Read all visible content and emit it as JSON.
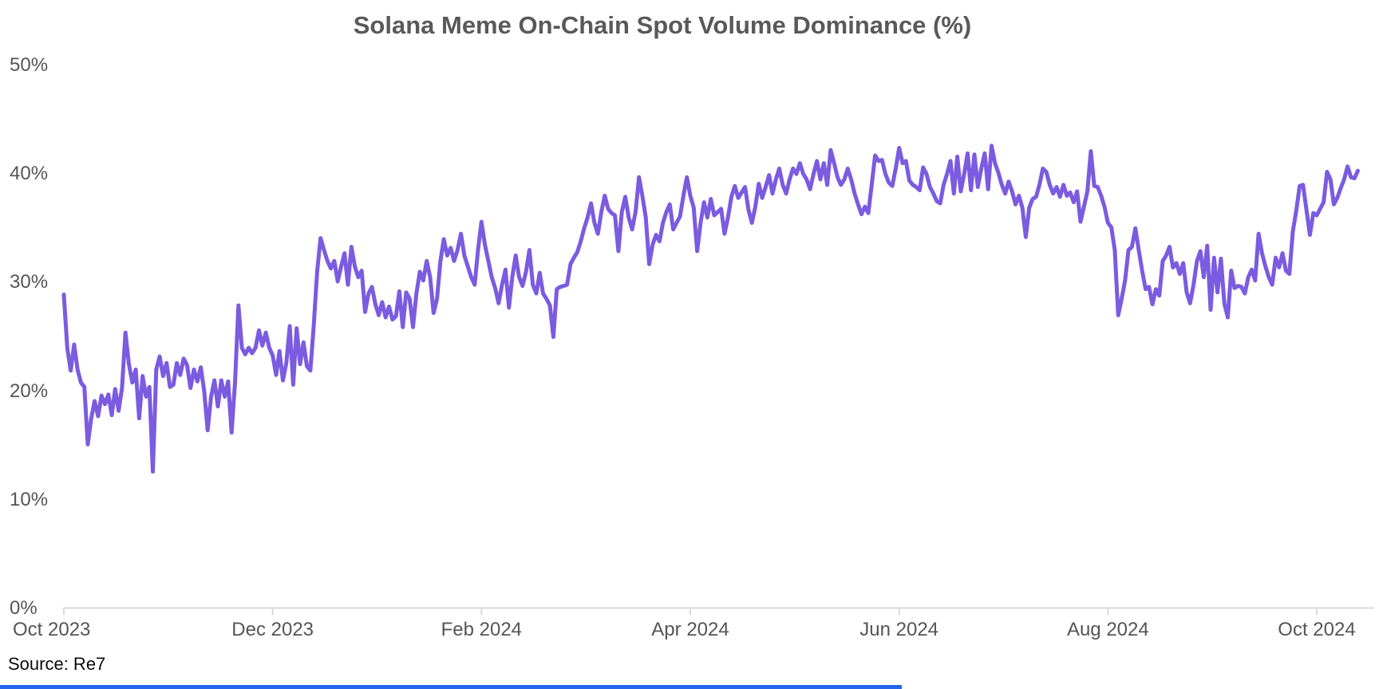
{
  "title": "Solana Meme On-Chain Spot Volume Dominance (%)",
  "source_note": "Source: Re7",
  "colors": {
    "background": "#ffffff",
    "line": "#7b5be0",
    "title_text": "#595959",
    "axis_label_text": "#555555",
    "axis_line": "#d9d9d9",
    "source_text": "#0b0b0b",
    "bottom_bar": "#2563eb"
  },
  "chart_data": {
    "type": "line",
    "title": "Solana Meme On-Chain Spot Volume Dominance (%)",
    "series_name": "Solana meme on-chain spot volume dominance",
    "unit": "%",
    "grid": false,
    "legend": false,
    "x_axis": {
      "start_date": "2023-10-01",
      "end_date": "2024-10-13",
      "tick_labels": [
        "Oct 2023",
        "Dec 2023",
        "Feb 2024",
        "Apr 2024",
        "Jun 2024",
        "Aug 2024",
        "Oct 2024"
      ],
      "tick_month_offsets": [
        0,
        2,
        4,
        6,
        8,
        10,
        12
      ]
    },
    "y_axis": {
      "min": 0,
      "max": 50,
      "tick_values": [
        0,
        10,
        20,
        30,
        40,
        50
      ],
      "tick_labels": [
        "0%",
        "10%",
        "20%",
        "30%",
        "40%",
        "50%"
      ]
    },
    "points_format": "[days_since_2023-10-01, dominance_pct]",
    "points": [
      [
        0,
        28.9
      ],
      [
        1,
        24
      ],
      [
        2,
        21.9
      ],
      [
        3,
        24.3
      ],
      [
        4,
        22
      ],
      [
        5,
        20.8
      ],
      [
        6,
        20.4
      ],
      [
        7,
        15.1
      ],
      [
        8,
        17.5
      ],
      [
        9,
        19.1
      ],
      [
        10,
        17.7
      ],
      [
        11,
        19.6
      ],
      [
        12,
        18.8
      ],
      [
        13,
        19.7
      ],
      [
        14,
        17.8
      ],
      [
        15,
        20.2
      ],
      [
        16,
        18.2
      ],
      [
        17,
        20.3
      ],
      [
        18,
        25.4
      ],
      [
        19,
        22.5
      ],
      [
        20,
        20.8
      ],
      [
        21,
        22
      ],
      [
        22,
        17.5
      ],
      [
        23,
        21.4
      ],
      [
        24,
        19.5
      ],
      [
        25,
        20.4
      ],
      [
        26,
        12.6
      ],
      [
        27,
        22
      ],
      [
        28,
        23.2
      ],
      [
        29,
        21.4
      ],
      [
        30,
        22.6
      ],
      [
        31,
        20.4
      ],
      [
        32,
        20.6
      ],
      [
        33,
        22.6
      ],
      [
        34,
        21.5
      ],
      [
        35,
        23
      ],
      [
        36,
        22.4
      ],
      [
        37,
        20.3
      ],
      [
        38,
        22
      ],
      [
        39,
        20.9
      ],
      [
        40,
        22.2
      ],
      [
        41,
        20
      ],
      [
        42,
        16.4
      ],
      [
        43,
        19.5
      ],
      [
        44,
        21
      ],
      [
        45,
        18.6
      ],
      [
        46,
        21
      ],
      [
        47,
        19.5
      ],
      [
        48,
        20.9
      ],
      [
        49,
        16.2
      ],
      [
        50,
        20.8
      ],
      [
        51,
        27.9
      ],
      [
        52,
        24
      ],
      [
        53,
        23.4
      ],
      [
        54,
        24
      ],
      [
        55,
        23.5
      ],
      [
        56,
        24
      ],
      [
        57,
        25.6
      ],
      [
        58,
        24.2
      ],
      [
        59,
        25.4
      ],
      [
        60,
        24
      ],
      [
        61,
        23.3
      ],
      [
        62,
        21.5
      ],
      [
        63,
        23.7
      ],
      [
        64,
        21
      ],
      [
        65,
        22.6
      ],
      [
        66,
        26
      ],
      [
        67,
        20.6
      ],
      [
        68,
        25.8
      ],
      [
        69,
        22.5
      ],
      [
        70,
        24.5
      ],
      [
        71,
        22.3
      ],
      [
        72,
        21.9
      ],
      [
        73,
        26
      ],
      [
        74,
        31
      ],
      [
        75,
        34.1
      ],
      [
        76,
        33
      ],
      [
        77,
        32
      ],
      [
        78,
        31.3
      ],
      [
        79,
        32
      ],
      [
        80,
        30.1
      ],
      [
        81,
        31.5
      ],
      [
        82,
        32.7
      ],
      [
        83,
        29.8
      ],
      [
        84,
        33.3
      ],
      [
        85,
        31.5
      ],
      [
        86,
        30.5
      ],
      [
        87,
        31.1
      ],
      [
        88,
        27.3
      ],
      [
        89,
        29
      ],
      [
        90,
        29.6
      ],
      [
        91,
        28
      ],
      [
        92,
        27
      ],
      [
        93,
        28.2
      ],
      [
        94,
        26.8
      ],
      [
        95,
        27.8
      ],
      [
        96,
        26.6
      ],
      [
        97,
        26.9
      ],
      [
        98,
        29.2
      ],
      [
        99,
        25.9
      ],
      [
        100,
        29.1
      ],
      [
        101,
        28.5
      ],
      [
        102,
        25.9
      ],
      [
        103,
        29
      ],
      [
        104,
        31
      ],
      [
        105,
        30.2
      ],
      [
        106,
        32
      ],
      [
        107,
        30.5
      ],
      [
        108,
        27.2
      ],
      [
        109,
        28.5
      ],
      [
        110,
        32
      ],
      [
        111,
        34
      ],
      [
        112,
        32.5
      ],
      [
        113,
        33.2
      ],
      [
        114,
        32
      ],
      [
        115,
        33
      ],
      [
        116,
        34.5
      ],
      [
        117,
        32.5
      ],
      [
        118,
        31.5
      ],
      [
        119,
        30.5
      ],
      [
        120,
        29.8
      ],
      [
        121,
        33
      ],
      [
        122,
        35.6
      ],
      [
        123,
        33.5
      ],
      [
        124,
        32
      ],
      [
        125,
        30.5
      ],
      [
        126,
        29.5
      ],
      [
        127,
        28.1
      ],
      [
        128,
        29.8
      ],
      [
        129,
        31.2
      ],
      [
        130,
        27.7
      ],
      [
        131,
        30.5
      ],
      [
        132,
        32.5
      ],
      [
        133,
        30.5
      ],
      [
        134,
        29.7
      ],
      [
        135,
        31
      ],
      [
        136,
        33
      ],
      [
        137,
        29.8
      ],
      [
        138,
        29
      ],
      [
        139,
        30.9
      ],
      [
        140,
        29
      ],
      [
        141,
        28.5
      ],
      [
        142,
        27.9
      ],
      [
        143,
        25
      ],
      [
        144,
        29.4
      ],
      [
        145,
        29.6
      ],
      [
        146,
        29.7
      ],
      [
        147,
        29.8
      ],
      [
        148,
        31.7
      ],
      [
        149,
        32.3
      ],
      [
        150,
        32.8
      ],
      [
        151,
        33.8
      ],
      [
        152,
        35
      ],
      [
        153,
        36
      ],
      [
        154,
        37.3
      ],
      [
        155,
        35.5
      ],
      [
        156,
        34.5
      ],
      [
        157,
        36.5
      ],
      [
        158,
        38
      ],
      [
        159,
        36.8
      ],
      [
        160,
        36.4
      ],
      [
        161,
        36.2
      ],
      [
        162,
        32.9
      ],
      [
        163,
        36.5
      ],
      [
        164,
        37.9
      ],
      [
        165,
        36
      ],
      [
        166,
        34.9
      ],
      [
        167,
        36.5
      ],
      [
        168,
        39.7
      ],
      [
        169,
        38
      ],
      [
        170,
        36
      ],
      [
        171,
        31.7
      ],
      [
        172,
        33.5
      ],
      [
        173,
        34.4
      ],
      [
        174,
        33.8
      ],
      [
        175,
        35.5
      ],
      [
        176,
        36.5
      ],
      [
        177,
        37.2
      ],
      [
        178,
        34.9
      ],
      [
        179,
        35.5
      ],
      [
        180,
        36.1
      ],
      [
        181,
        38
      ],
      [
        182,
        39.7
      ],
      [
        183,
        38
      ],
      [
        184,
        36.9
      ],
      [
        185,
        32.9
      ],
      [
        186,
        35.5
      ],
      [
        187,
        37.4
      ],
      [
        188,
        36
      ],
      [
        189,
        37.7
      ],
      [
        190,
        36.2
      ],
      [
        191,
        36.5
      ],
      [
        192,
        36.8
      ],
      [
        193,
        34.5
      ],
      [
        194,
        36
      ],
      [
        195,
        37.9
      ],
      [
        196,
        38.9
      ],
      [
        197,
        37.8
      ],
      [
        198,
        38.3
      ],
      [
        199,
        38.8
      ],
      [
        200,
        36.7
      ],
      [
        201,
        35.5
      ],
      [
        202,
        37
      ],
      [
        203,
        39.1
      ],
      [
        204,
        37.8
      ],
      [
        205,
        38.8
      ],
      [
        206,
        39.9
      ],
      [
        207,
        38.2
      ],
      [
        208,
        39.5
      ],
      [
        209,
        40.5
      ],
      [
        210,
        39
      ],
      [
        211,
        38.2
      ],
      [
        212,
        39.5
      ],
      [
        213,
        40.5
      ],
      [
        214,
        40
      ],
      [
        215,
        41
      ],
      [
        216,
        40
      ],
      [
        217,
        39.5
      ],
      [
        218,
        38.6
      ],
      [
        219,
        40
      ],
      [
        220,
        41.2
      ],
      [
        221,
        39.5
      ],
      [
        222,
        41
      ],
      [
        223,
        39
      ],
      [
        224,
        42.2
      ],
      [
        225,
        41
      ],
      [
        226,
        39.7
      ],
      [
        227,
        39
      ],
      [
        228,
        39.5
      ],
      [
        229,
        40.5
      ],
      [
        230,
        39.5
      ],
      [
        231,
        38.2
      ],
      [
        232,
        37.2
      ],
      [
        233,
        36.3
      ],
      [
        234,
        37
      ],
      [
        235,
        36.4
      ],
      [
        236,
        39
      ],
      [
        237,
        41.7
      ],
      [
        238,
        41.2
      ],
      [
        239,
        41.3
      ],
      [
        240,
        40
      ],
      [
        241,
        39.2
      ],
      [
        242,
        38.9
      ],
      [
        243,
        40.5
      ],
      [
        244,
        42.4
      ],
      [
        245,
        41
      ],
      [
        246,
        41.2
      ],
      [
        247,
        39.4
      ],
      [
        248,
        39
      ],
      [
        249,
        38.8
      ],
      [
        250,
        38.5
      ],
      [
        251,
        40.6
      ],
      [
        252,
        40
      ],
      [
        253,
        38.8
      ],
      [
        254,
        38.2
      ],
      [
        255,
        37.5
      ],
      [
        256,
        37.3
      ],
      [
        257,
        39
      ],
      [
        258,
        40
      ],
      [
        259,
        41.2
      ],
      [
        260,
        38.2
      ],
      [
        261,
        41.6
      ],
      [
        262,
        38.4
      ],
      [
        263,
        40
      ],
      [
        264,
        41.9
      ],
      [
        265,
        38.5
      ],
      [
        266,
        41.8
      ],
      [
        267,
        38.8
      ],
      [
        268,
        40.5
      ],
      [
        269,
        41.9
      ],
      [
        270,
        38.6
      ],
      [
        271,
        42.6
      ],
      [
        272,
        41
      ],
      [
        273,
        40.1
      ],
      [
        274,
        39
      ],
      [
        275,
        38.2
      ],
      [
        276,
        39.3
      ],
      [
        277,
        38.4
      ],
      [
        278,
        37.2
      ],
      [
        279,
        38
      ],
      [
        280,
        36.9
      ],
      [
        281,
        34.2
      ],
      [
        282,
        36.9
      ],
      [
        283,
        37.7
      ],
      [
        284,
        37.9
      ],
      [
        285,
        39
      ],
      [
        286,
        40.5
      ],
      [
        287,
        40.2
      ],
      [
        288,
        39
      ],
      [
        289,
        38.2
      ],
      [
        290,
        38.8
      ],
      [
        291,
        37.9
      ],
      [
        292,
        39
      ],
      [
        293,
        38
      ],
      [
        294,
        38.3
      ],
      [
        295,
        37.4
      ],
      [
        296,
        38.4
      ],
      [
        297,
        35.6
      ],
      [
        298,
        37
      ],
      [
        299,
        38.4
      ],
      [
        300,
        42.1
      ],
      [
        301,
        38.9
      ],
      [
        302,
        38.8
      ],
      [
        303,
        38
      ],
      [
        304,
        37
      ],
      [
        305,
        35.5
      ],
      [
        306,
        35.1
      ],
      [
        307,
        33
      ],
      [
        308,
        27
      ],
      [
        309,
        28.5
      ],
      [
        310,
        30.2
      ],
      [
        311,
        33
      ],
      [
        312,
        33.3
      ],
      [
        313,
        35
      ],
      [
        314,
        33
      ],
      [
        315,
        31.1
      ],
      [
        316,
        29.4
      ],
      [
        317,
        29.6
      ],
      [
        318,
        28
      ],
      [
        319,
        29.4
      ],
      [
        320,
        28.8
      ],
      [
        321,
        32
      ],
      [
        322,
        32.5
      ],
      [
        323,
        33.3
      ],
      [
        324,
        31.4
      ],
      [
        325,
        31.8
      ],
      [
        326,
        30.8
      ],
      [
        327,
        31.8
      ],
      [
        328,
        29.1
      ],
      [
        329,
        28.1
      ],
      [
        330,
        29.8
      ],
      [
        331,
        32
      ],
      [
        332,
        32.9
      ],
      [
        333,
        30.5
      ],
      [
        334,
        33.4
      ],
      [
        335,
        27.5
      ],
      [
        336,
        32.3
      ],
      [
        337,
        29.1
      ],
      [
        338,
        32.2
      ],
      [
        339,
        28.1
      ],
      [
        340,
        26.8
      ],
      [
        341,
        31.1
      ],
      [
        342,
        29.5
      ],
      [
        343,
        29.7
      ],
      [
        344,
        29.6
      ],
      [
        345,
        29
      ],
      [
        346,
        30.5
      ],
      [
        347,
        31.2
      ],
      [
        348,
        30.2
      ],
      [
        349,
        34.5
      ],
      [
        350,
        32.7
      ],
      [
        351,
        31.5
      ],
      [
        352,
        30.5
      ],
      [
        353,
        29.8
      ],
      [
        354,
        32.3
      ],
      [
        355,
        31.4
      ],
      [
        356,
        32.7
      ],
      [
        357,
        31.1
      ],
      [
        358,
        30.8
      ],
      [
        359,
        34.7
      ],
      [
        360,
        36.6
      ],
      [
        361,
        38.9
      ],
      [
        362,
        39
      ],
      [
        363,
        36.7
      ],
      [
        364,
        34.4
      ],
      [
        365,
        36.4
      ],
      [
        366,
        36.2
      ],
      [
        367,
        36.8
      ],
      [
        368,
        37.4
      ],
      [
        369,
        40.2
      ],
      [
        370,
        39.5
      ],
      [
        371,
        37.2
      ],
      [
        372,
        37.8
      ],
      [
        373,
        38.7
      ],
      [
        374,
        39.5
      ],
      [
        375,
        40.7
      ],
      [
        376,
        39.7
      ],
      [
        377,
        39.6
      ],
      [
        378,
        40.3
      ]
    ]
  }
}
